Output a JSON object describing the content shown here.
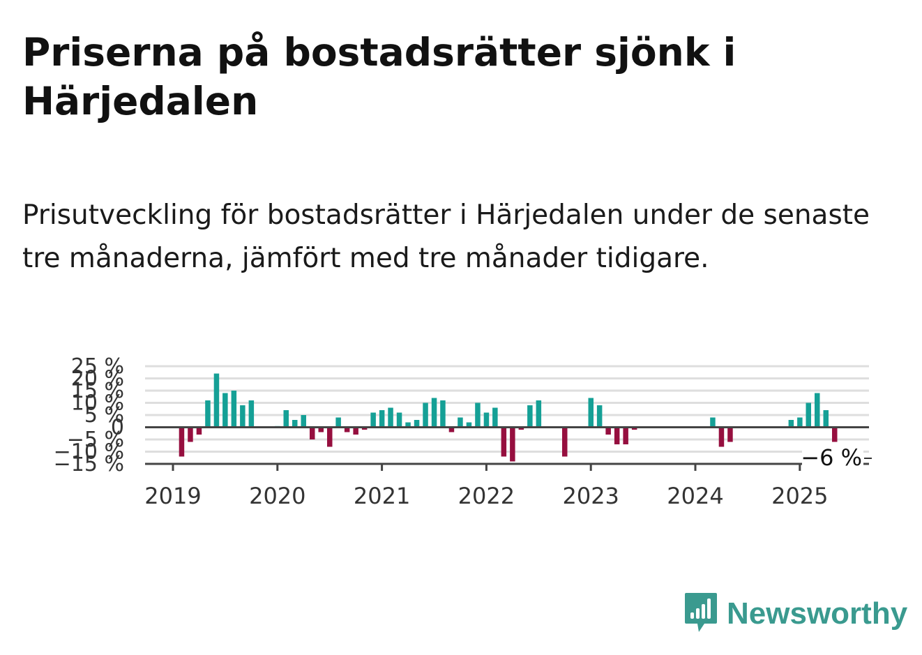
{
  "title": "Priserna på bostadsrätter sjönk i Härjedalen",
  "subtitle": "Prisutveckling för bostadsrätter i Härjedalen under de senaste tre månaderna, jämfört med tre månader tidigare.",
  "brand": {
    "name": "Newsworthy",
    "icon": "newsworthy-logo-icon",
    "color": "#3a9a8f"
  },
  "colors": {
    "positive": "#15a096",
    "negative": "#960f3f",
    "grid": "#dedede",
    "axis": "#444444"
  },
  "chart_data": {
    "type": "bar",
    "x_unit": "month",
    "ylim": [
      -15,
      25
    ],
    "y_ticks": [
      25,
      20,
      15,
      10,
      5,
      0,
      -5,
      -10,
      -15
    ],
    "y_tick_labels": [
      "25 %",
      "20 %",
      "15 %",
      "10 %",
      "5 %",
      "0",
      "−5 %",
      "−10 %",
      "−15 %"
    ],
    "x_ticks": [
      "2019-01",
      "2020-01",
      "2021-01",
      "2022-01",
      "2023-01",
      "2024-01",
      "2025-01"
    ],
    "x_tick_labels": [
      "2019",
      "2020",
      "2021",
      "2022",
      "2023",
      "2024",
      "2025"
    ],
    "grid": true,
    "end_label": "−6 %",
    "points": [
      [
        "2019-02",
        -12
      ],
      [
        "2019-03",
        -6
      ],
      [
        "2019-04",
        -3
      ],
      [
        "2019-05",
        11
      ],
      [
        "2019-06",
        22
      ],
      [
        "2019-07",
        14
      ],
      [
        "2019-08",
        15
      ],
      [
        "2019-09",
        9
      ],
      [
        "2019-10",
        11
      ],
      [
        "2020-01",
        0.5
      ],
      [
        "2020-02",
        7
      ],
      [
        "2020-03",
        3
      ],
      [
        "2020-04",
        5
      ],
      [
        "2020-05",
        -5
      ],
      [
        "2020-06",
        -2
      ],
      [
        "2020-07",
        -8
      ],
      [
        "2020-08",
        4
      ],
      [
        "2020-09",
        -2
      ],
      [
        "2020-10",
        -3
      ],
      [
        "2020-11",
        -1
      ],
      [
        "2020-12",
        6
      ],
      [
        "2021-01",
        7
      ],
      [
        "2021-02",
        8
      ],
      [
        "2021-03",
        6
      ],
      [
        "2021-04",
        2
      ],
      [
        "2021-05",
        3
      ],
      [
        "2021-06",
        10
      ],
      [
        "2021-07",
        12
      ],
      [
        "2021-08",
        11
      ],
      [
        "2021-09",
        -2
      ],
      [
        "2021-10",
        4
      ],
      [
        "2021-11",
        2
      ],
      [
        "2021-12",
        10
      ],
      [
        "2022-01",
        6
      ],
      [
        "2022-02",
        8
      ],
      [
        "2022-03",
        -12
      ],
      [
        "2022-04",
        -14
      ],
      [
        "2022-05",
        -1
      ],
      [
        "2022-06",
        9
      ],
      [
        "2022-07",
        11
      ],
      [
        "2022-10",
        -12
      ],
      [
        "2023-01",
        12
      ],
      [
        "2023-02",
        9
      ],
      [
        "2023-03",
        -3
      ],
      [
        "2023-04",
        -7
      ],
      [
        "2023-05",
        -7
      ],
      [
        "2023-06",
        -1
      ],
      [
        "2024-03",
        4
      ],
      [
        "2024-04",
        -8
      ],
      [
        "2024-05",
        -6
      ],
      [
        "2024-12",
        3
      ],
      [
        "2025-01",
        4
      ],
      [
        "2025-02",
        10
      ],
      [
        "2025-03",
        14
      ],
      [
        "2025-04",
        7
      ],
      [
        "2025-05",
        -6
      ]
    ]
  }
}
